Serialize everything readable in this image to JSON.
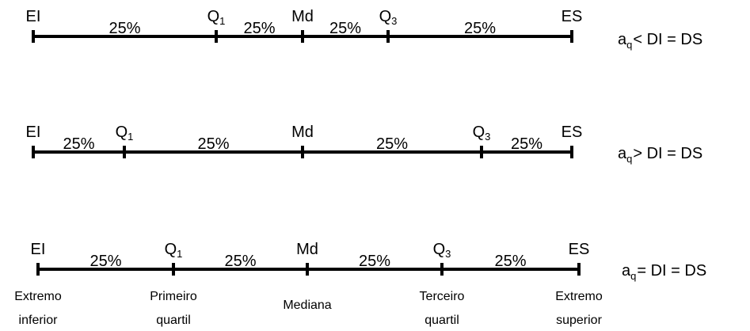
{
  "diagrams": [
    {
      "markers": [
        {
          "label": "EI"
        },
        {
          "label": "Q",
          "sub": "1"
        },
        {
          "label": "Md"
        },
        {
          "label": "Q",
          "sub": "3"
        },
        {
          "label": "ES"
        }
      ],
      "segments": [
        "25%",
        "25%",
        "25%",
        "25%"
      ],
      "condition": {
        "a": "a",
        "sub": "q",
        "text": "< DI = DS"
      }
    },
    {
      "markers": [
        {
          "label": "EI"
        },
        {
          "label": "Q",
          "sub": "1"
        },
        {
          "label": "Md"
        },
        {
          "label": "Q",
          "sub": "3"
        },
        {
          "label": "ES"
        }
      ],
      "segments": [
        "25%",
        "25%",
        "25%",
        "25%"
      ],
      "condition": {
        "a": "a",
        "sub": "q",
        "text": "> DI = DS"
      }
    },
    {
      "markers": [
        {
          "label": "EI",
          "note": [
            "Extremo",
            "inferior"
          ]
        },
        {
          "label": "Q",
          "sub": "1",
          "note": [
            "Primeiro",
            "quartil"
          ]
        },
        {
          "label": "Md",
          "note": [
            "Mediana"
          ]
        },
        {
          "label": "Q",
          "sub": "3",
          "note": [
            "Terceiro",
            "quartil"
          ]
        },
        {
          "label": "ES",
          "note": [
            "Extremo",
            "superior"
          ]
        }
      ],
      "segments": [
        "25%",
        "25%",
        "25%",
        "25%"
      ],
      "condition": {
        "a": "a",
        "sub": "q",
        "text": "= DI = DS"
      }
    }
  ]
}
